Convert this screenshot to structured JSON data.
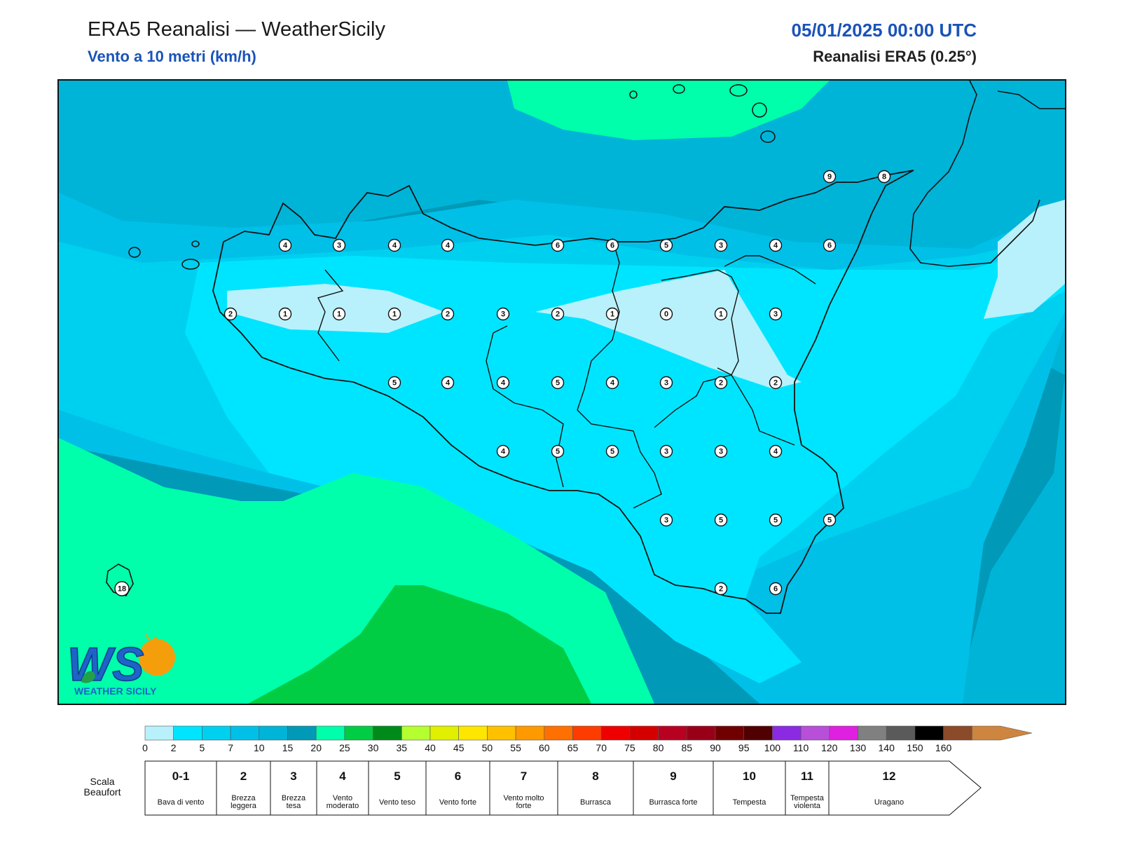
{
  "header": {
    "title": "ERA5 Reanalisi — WeatherSicily",
    "subtitle": "Vento a 10 metri (km/h)",
    "datetime": "05/01/2025 00:00 UTC",
    "source": "Reanalisi ERA5 (0.25°)"
  },
  "map": {
    "region": "Sicily",
    "colors": {
      "band_lightest": "#b8f1fc",
      "band_2_5": "#00e5ff",
      "band_5_7": "#00d0f0",
      "band_7_10": "#00b4d8",
      "band_10_15": "#0099b8",
      "band_15_20": "#00ffaa",
      "band_20_25": "#00cc44"
    },
    "points": [
      {
        "value": "4"
      },
      {
        "value": "3"
      },
      {
        "value": "4"
      },
      {
        "value": "4"
      },
      {
        "value": "6"
      },
      {
        "value": "6"
      },
      {
        "value": "5"
      },
      {
        "value": "3"
      },
      {
        "value": "4"
      },
      {
        "value": "6"
      },
      {
        "value": "2"
      },
      {
        "value": "1"
      },
      {
        "value": "1"
      },
      {
        "value": "1"
      },
      {
        "value": "2"
      },
      {
        "value": "3"
      },
      {
        "value": "2"
      },
      {
        "value": "1"
      },
      {
        "value": "0"
      },
      {
        "value": "1"
      },
      {
        "value": "3"
      },
      {
        "value": "5"
      },
      {
        "value": "4"
      },
      {
        "value": "4"
      },
      {
        "value": "5"
      },
      {
        "value": "4"
      },
      {
        "value": "3"
      },
      {
        "value": "2"
      },
      {
        "value": "2"
      },
      {
        "value": "4"
      },
      {
        "value": "5"
      },
      {
        "value": "5"
      },
      {
        "value": "3"
      },
      {
        "value": "3"
      },
      {
        "value": "4"
      },
      {
        "value": "3"
      },
      {
        "value": "5"
      },
      {
        "value": "5"
      },
      {
        "value": "5"
      },
      {
        "value": "2"
      },
      {
        "value": "6"
      },
      {
        "value": "9"
      },
      {
        "value": "8"
      },
      {
        "value": "18"
      }
    ]
  },
  "logo": {
    "letters": "WS",
    "name": "WEATHER SICILY"
  },
  "colorbar": {
    "ticks": [
      "0",
      "2",
      "5",
      "7",
      "10",
      "15",
      "20",
      "25",
      "30",
      "35",
      "40",
      "45",
      "50",
      "55",
      "60",
      "65",
      "70",
      "75",
      "80",
      "85",
      "90",
      "95",
      "100",
      "110",
      "120",
      "130",
      "140",
      "150",
      "160"
    ],
    "colors": [
      "#b8f1fc",
      "#00e5ff",
      "#00d0f0",
      "#00c0e8",
      "#00b4d8",
      "#0099b8",
      "#00ffaa",
      "#00cc44",
      "#008a1a",
      "#b5ff30",
      "#e0f000",
      "#ffe600",
      "#ffc000",
      "#ff9900",
      "#ff7000",
      "#ff3c00",
      "#ee0000",
      "#d40000",
      "#b80020",
      "#980018",
      "#700000",
      "#500000",
      "#8a2be2",
      "#b84fd8",
      "#e020e0",
      "#808080",
      "#5a5a5a",
      "#000000",
      "#8b4a2a",
      "#cd853f"
    ]
  },
  "beaufort": {
    "title": "Scala Beaufort",
    "levels": [
      {
        "num": "0-1",
        "name": "Bava di vento"
      },
      {
        "num": "2",
        "name": "Brezza leggera"
      },
      {
        "num": "3",
        "name": "Brezza tesa"
      },
      {
        "num": "4",
        "name": "Vento moderato"
      },
      {
        "num": "5",
        "name": "Vento teso"
      },
      {
        "num": "6",
        "name": "Vento forte"
      },
      {
        "num": "7",
        "name": "Vento molto forte"
      },
      {
        "num": "8",
        "name": "Burrasca"
      },
      {
        "num": "9",
        "name": "Burrasca forte"
      },
      {
        "num": "10",
        "name": "Tempesta"
      },
      {
        "num": "11",
        "name": "Tempesta violenta"
      },
      {
        "num": "12",
        "name": "Uragano"
      }
    ]
  }
}
